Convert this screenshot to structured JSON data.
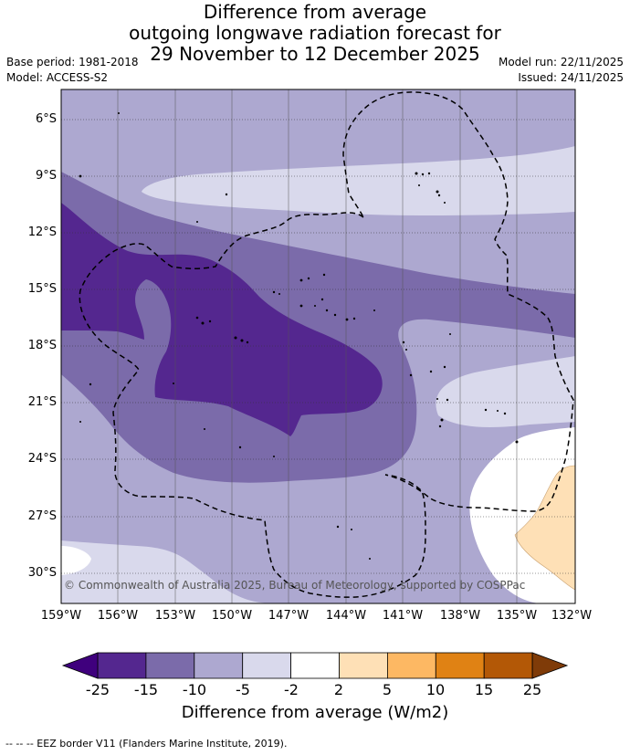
{
  "title": {
    "line1": "Difference from average",
    "line2": "outgoing longwave radiation forecast for",
    "line3": "29 November to 12 December 2025"
  },
  "meta": {
    "base_period": "Base period: 1981-2018",
    "model": "Model: ACCESS-S2",
    "model_run": "Model run: 22/11/2025",
    "issued": "Issued: 24/11/2025"
  },
  "map": {
    "lat_labels": [
      "6°S",
      "9°S",
      "12°S",
      "15°S",
      "18°S",
      "21°S",
      "24°S",
      "27°S",
      "30°S"
    ],
    "lon_labels": [
      "159°W",
      "156°W",
      "153°W",
      "150°W",
      "147°W",
      "144°W",
      "141°W",
      "138°W",
      "135°W",
      "132°W"
    ],
    "copyright": "© Commonwealth of Australia 2025, Bureau of Meteorology, supported by COSPPac"
  },
  "colorbar": {
    "ticks": [
      "-25",
      "-15",
      "-10",
      "-5",
      "-2",
      "2",
      "5",
      "10",
      "15",
      "25"
    ],
    "colors": {
      "under": "#3f007d",
      "bins": [
        "#54278f",
        "#7b6baa",
        "#ada8d0",
        "#d9d9ec",
        "#ffffff",
        "#fee0b6",
        "#fdb863",
        "#e08214",
        "#b35806"
      ],
      "over": "#7f3b08"
    },
    "label": "Difference from average (W/m2)"
  },
  "footnote": "--  --  -- EEZ border V11 (Flanders Marine Institute, 2019)."
}
